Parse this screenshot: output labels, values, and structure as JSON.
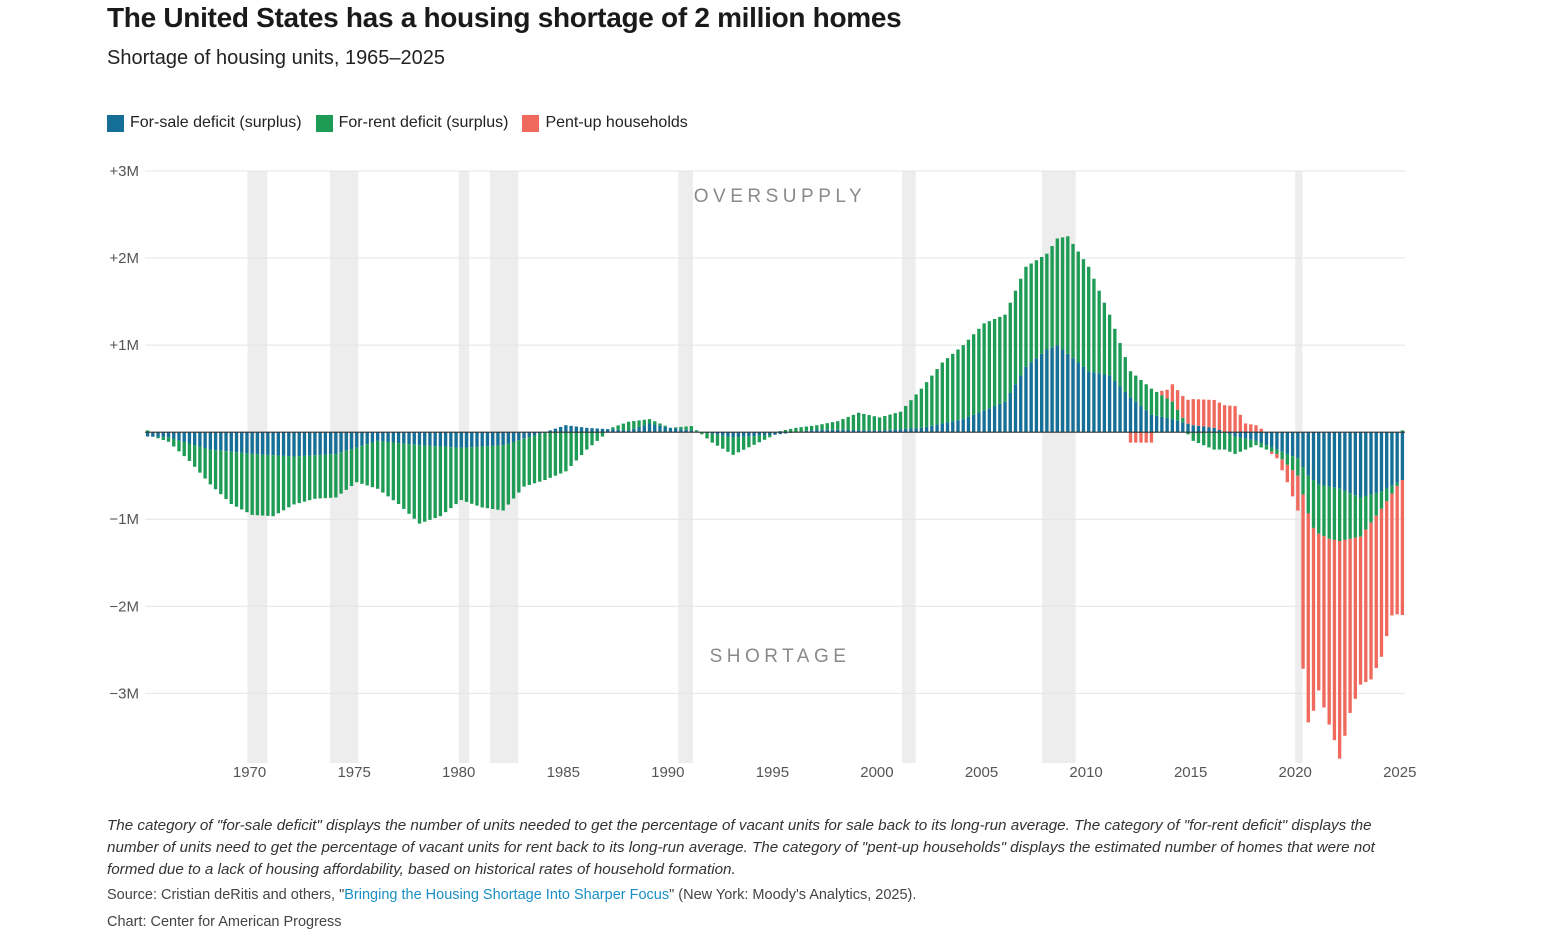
{
  "header": {
    "title": "The United States has a housing shortage of 2 million homes",
    "subtitle": "Shortage of housing units, 1965–2025"
  },
  "legend": [
    {
      "label": "For-sale deficit (surplus)",
      "color": "#166f96"
    },
    {
      "label": "For-rent deficit (surplus)",
      "color": "#1e9c55"
    },
    {
      "label": "Pent-up households",
      "color": "#f0695d"
    }
  ],
  "footer": {
    "note": "The category of \"for-sale deficit\" displays the number of units needed to get the percentage of vacant units for sale back to its long-run average. The category of \"for-rent deficit\" displays the number of units need to get the percentage of vacant units for rent back to its long-run average. The category of \"pent-up households\" displays the estimated number of homes that were not formed due to a lack of housing affordability, based on historical rates of household formation.",
    "source_prefix": "Source: Cristian deRitis and others, \"",
    "source_link": "Bringing the Housing Shortage Into Sharper Focus",
    "source_suffix": "\" (New York: Moody's Analytics, 2025).",
    "credit": "Chart: Center for American Progress"
  },
  "chart_data": {
    "type": "bar",
    "stacked": true,
    "frequency": "quarterly",
    "annotations": [
      "OVERSUPPLY",
      "SHORTAGE"
    ],
    "ylim": [
      -3.8,
      3
    ],
    "y_ticks": [
      {
        "value": 3,
        "label": "+3M"
      },
      {
        "value": 2,
        "label": "+2M"
      },
      {
        "value": 1,
        "label": "+1M"
      },
      {
        "value": -1,
        "label": "−1M"
      },
      {
        "value": -2,
        "label": "−2M"
      },
      {
        "value": -3,
        "label": "−3M"
      }
    ],
    "x_start": 1965.0,
    "x_end": 2025.25,
    "x_ticks": [
      "1970",
      "1975",
      "1980",
      "1985",
      "1990",
      "1995",
      "2000",
      "2005",
      "2010",
      "2015",
      "2020",
      "2025"
    ],
    "recessions": [
      [
        1969.9,
        1970.85
      ],
      [
        1973.85,
        1975.2
      ],
      [
        1980.0,
        1980.5
      ],
      [
        1981.5,
        1982.85
      ],
      [
        1990.5,
        1991.2
      ],
      [
        2001.2,
        2001.85
      ],
      [
        2007.9,
        2009.5
      ],
      [
        2020.0,
        2020.35
      ]
    ],
    "series_units": "millions of housing units (positive = surplus/oversupply, negative = shortage)",
    "series_keyframes": [
      {
        "name": "For-sale deficit (surplus)",
        "points": [
          [
            1965.0,
            -0.05
          ],
          [
            1966,
            -0.06
          ],
          [
            1968,
            -0.2
          ],
          [
            1970,
            -0.25
          ],
          [
            1972,
            -0.28
          ],
          [
            1974,
            -0.25
          ],
          [
            1976,
            -0.1
          ],
          [
            1978,
            -0.15
          ],
          [
            1980,
            -0.18
          ],
          [
            1982,
            -0.15
          ],
          [
            1984,
            0.0
          ],
          [
            1985,
            0.08
          ],
          [
            1986,
            0.05
          ],
          [
            1988,
            0.02
          ],
          [
            1989,
            0.1
          ],
          [
            1990,
            0.05
          ],
          [
            1991,
            0.02
          ],
          [
            1993,
            -0.06
          ],
          [
            1995,
            -0.03
          ],
          [
            1997,
            0.03
          ],
          [
            2000,
            0.02
          ],
          [
            2002,
            0.05
          ],
          [
            2004,
            0.15
          ],
          [
            2006,
            0.35
          ],
          [
            2007,
            0.75
          ],
          [
            2008,
            0.95
          ],
          [
            2008.5,
            1.0
          ],
          [
            2009,
            0.9
          ],
          [
            2010,
            0.7
          ],
          [
            2011,
            0.65
          ],
          [
            2012,
            0.4
          ],
          [
            2013,
            0.2
          ],
          [
            2014,
            0.15
          ],
          [
            2015,
            0.08
          ],
          [
            2016,
            0.05
          ],
          [
            2017,
            -0.05
          ],
          [
            2018,
            -0.1
          ],
          [
            2019,
            -0.2
          ],
          [
            2020,
            -0.3
          ],
          [
            2020.5,
            -0.5
          ],
          [
            2021,
            -0.6
          ],
          [
            2022,
            -0.65
          ],
          [
            2023,
            -0.75
          ],
          [
            2024,
            -0.68
          ],
          [
            2025,
            -0.55
          ]
        ]
      },
      {
        "name": "For-rent deficit (surplus)",
        "points": [
          [
            1965.0,
            0.02
          ],
          [
            1966,
            -0.05
          ],
          [
            1967,
            -0.2
          ],
          [
            1968,
            -0.4
          ],
          [
            1969,
            -0.6
          ],
          [
            1970,
            -0.7
          ],
          [
            1971,
            -0.7
          ],
          [
            1972,
            -0.55
          ],
          [
            1973,
            -0.5
          ],
          [
            1974,
            -0.5
          ],
          [
            1975,
            -0.4
          ],
          [
            1976,
            -0.55
          ],
          [
            1977,
            -0.7
          ],
          [
            1978,
            -0.9
          ],
          [
            1979,
            -0.8
          ],
          [
            1980,
            -0.6
          ],
          [
            1981,
            -0.7
          ],
          [
            1982,
            -0.75
          ],
          [
            1983,
            -0.55
          ],
          [
            1984,
            -0.55
          ],
          [
            1985,
            -0.45
          ],
          [
            1986,
            -0.2
          ],
          [
            1987,
            0.0
          ],
          [
            1988,
            0.1
          ],
          [
            1989,
            0.05
          ],
          [
            1990,
            0.0
          ],
          [
            1991,
            0.05
          ],
          [
            1992,
            -0.1
          ],
          [
            1993,
            -0.2
          ],
          [
            1994,
            -0.1
          ],
          [
            1995,
            0.0
          ],
          [
            1996,
            0.05
          ],
          [
            1997,
            0.05
          ],
          [
            1998,
            0.1
          ],
          [
            1999,
            0.2
          ],
          [
            2000,
            0.15
          ],
          [
            2001,
            0.2
          ],
          [
            2002,
            0.45
          ],
          [
            2003,
            0.7
          ],
          [
            2004,
            0.85
          ],
          [
            2005,
            1.0
          ],
          [
            2006,
            1.0
          ],
          [
            2007,
            1.15
          ],
          [
            2008,
            1.1
          ],
          [
            2009,
            1.35
          ],
          [
            2010,
            1.2
          ],
          [
            2011,
            0.7
          ],
          [
            2012,
            0.3
          ],
          [
            2013,
            0.3
          ],
          [
            2014,
            0.2
          ],
          [
            2015,
            -0.1
          ],
          [
            2016,
            -0.2
          ],
          [
            2017,
            -0.2
          ],
          [
            2018,
            -0.05
          ],
          [
            2019,
            -0.05
          ],
          [
            2020,
            -0.2
          ],
          [
            2020.75,
            -0.55
          ],
          [
            2021.5,
            -0.6
          ],
          [
            2022,
            -0.6
          ],
          [
            2023,
            -0.45
          ],
          [
            2024,
            -0.2
          ],
          [
            2025,
            0.02
          ]
        ]
      },
      {
        "name": "Pent-up households",
        "points": [
          [
            1965.0,
            0.0
          ],
          [
            2011.75,
            0.0
          ],
          [
            2012.0,
            -0.12
          ],
          [
            2013.0,
            -0.12
          ],
          [
            2013.25,
            0.0
          ],
          [
            2013.75,
            0.1
          ],
          [
            2014.0,
            0.2
          ],
          [
            2014.5,
            0.25
          ],
          [
            2015.0,
            0.3
          ],
          [
            2016.0,
            0.32
          ],
          [
            2017.0,
            0.3
          ],
          [
            2017.5,
            0.1
          ],
          [
            2018.0,
            0.08
          ],
          [
            2018.5,
            0.0
          ],
          [
            2019.0,
            -0.05
          ],
          [
            2019.5,
            -0.2
          ],
          [
            2020.0,
            -0.4
          ],
          [
            2020.25,
            -2.0
          ],
          [
            2020.5,
            -2.4
          ],
          [
            2021.0,
            -1.8
          ],
          [
            2021.75,
            -2.3
          ],
          [
            2022.0,
            -2.5
          ],
          [
            2022.5,
            -2.0
          ],
          [
            2023.0,
            -1.7
          ],
          [
            2023.5,
            -1.8
          ],
          [
            2024.0,
            -1.7
          ],
          [
            2024.5,
            -1.4
          ],
          [
            2025.0,
            -1.55
          ]
        ]
      }
    ]
  }
}
